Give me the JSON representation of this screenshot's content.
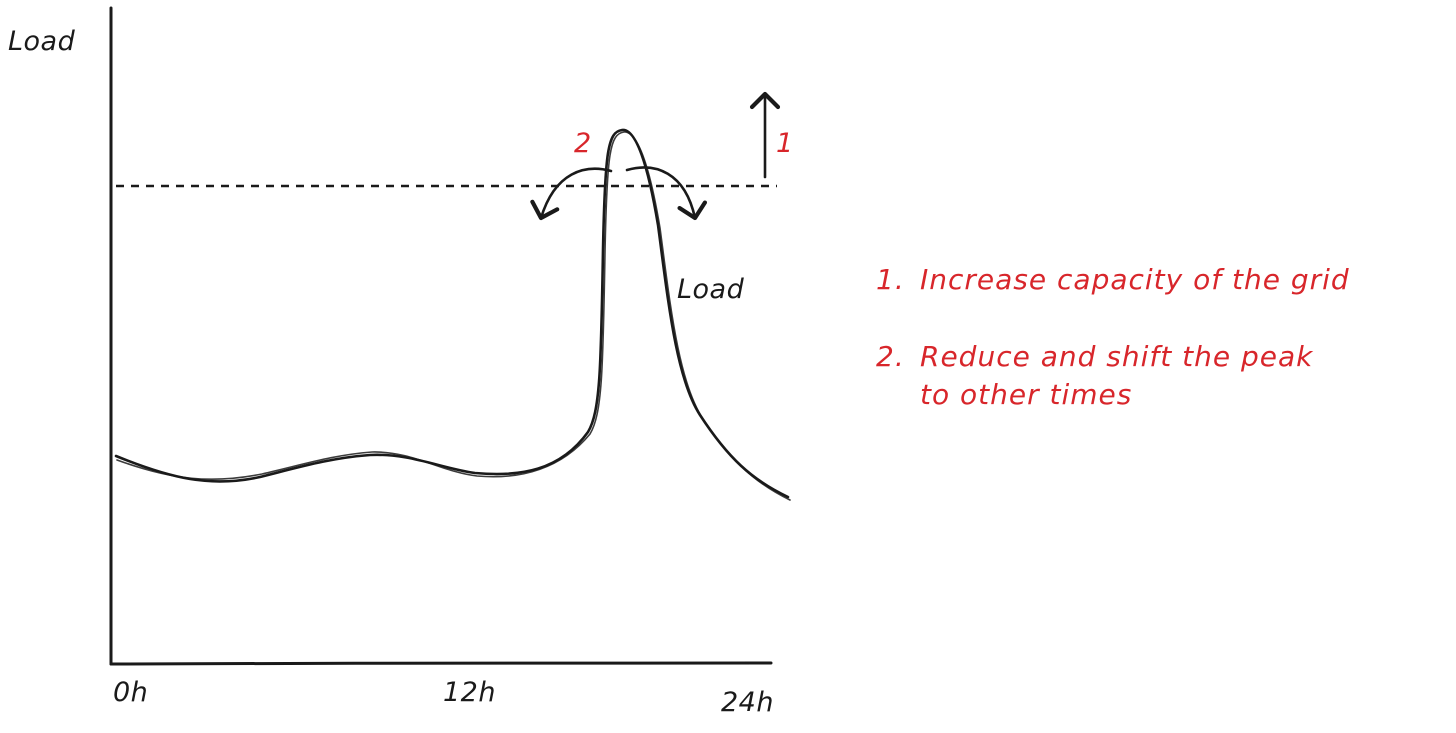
{
  "diagram": {
    "y_axis_label": "Load",
    "curve_label": "Load",
    "x_ticks": [
      "0h",
      "12h",
      "24h"
    ],
    "marker_1": "1",
    "marker_2": "2",
    "notes": [
      {
        "number": "1.",
        "lines": [
          "Increase capacity of the grid"
        ]
      },
      {
        "number": "2.",
        "lines": [
          "Reduce and shift the peak",
          "to other times"
        ]
      }
    ],
    "colors": {
      "ink": "#1a1a1a",
      "annotation": "#d8262b"
    }
  }
}
